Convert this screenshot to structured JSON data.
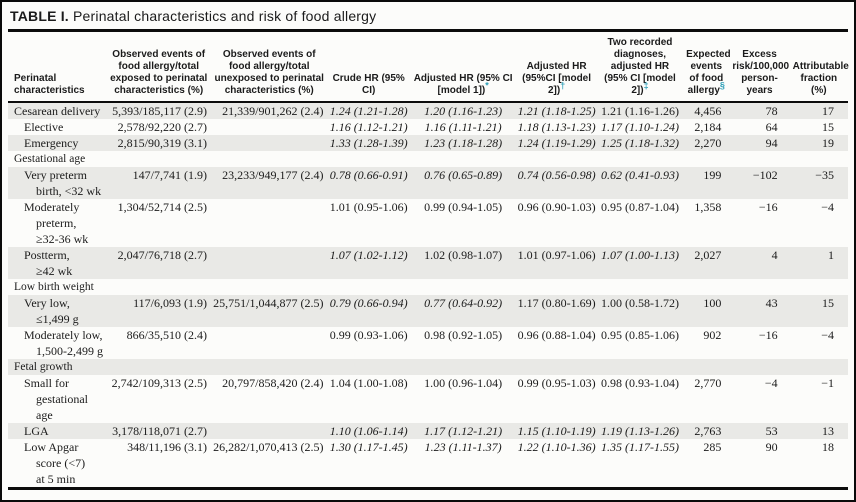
{
  "title": {
    "prefix": "TABLE I.",
    "text": " Perinatal characteristics and risk of food allergy"
  },
  "colors": {
    "footnote_marker_teal": "#2f9fb8",
    "row_shade": "#e9e9e6",
    "rule_black": "#0c0c0c",
    "text": "#1b1b1b",
    "paper": "#fcfcfa"
  },
  "table": {
    "columns": [
      {
        "key": "characteristic",
        "label": "Perinatal characteristics",
        "sup": ""
      },
      {
        "key": "observed_exposed",
        "label": "Observed events of food allergy/total exposed to perinatal characteristics (%)",
        "sup": ""
      },
      {
        "key": "observed_unexposed",
        "label": "Observed events of food allergy/total unexposed to perinatal characteristics (%)",
        "sup": ""
      },
      {
        "key": "crude_hr",
        "label": "Crude HR (95% CI)",
        "sup": ""
      },
      {
        "key": "adjusted_hr_model1",
        "label": "Adjusted HR (95% CI [model 1])",
        "sup": "*"
      },
      {
        "key": "adjusted_hr_model2",
        "label": "Adjusted HR (95%CI [model 2])",
        "sup": "†"
      },
      {
        "key": "two_recorded_hr",
        "label": "Two recorded diagnoses, adjusted HR (95% CI [model 2])",
        "sup": "‡"
      },
      {
        "key": "expected_events",
        "label": "Expected events of food allergy",
        "sup": "§"
      },
      {
        "key": "excess_risk",
        "label": "Excess risk/100,000 person-years",
        "sup": ""
      },
      {
        "key": "attributable_fraction",
        "label": "Attributable fraction (%)",
        "sup": ""
      }
    ],
    "rows": [
      {
        "label": "Cesarean delivery",
        "type": "data",
        "indent": 0,
        "shaded": true,
        "cells": {
          "observed_exposed": "5,393/185,117 (2.9)",
          "observed_unexposed": "21,339/901,262 (2.4)",
          "crude_hr": {
            "text": "1.24 (1.21-1.28)",
            "italic": true
          },
          "adjusted_hr_model1": {
            "text": "1.20 (1.16-1.23)",
            "italic": true
          },
          "adjusted_hr_model2": {
            "text": "1.21 (1.18-1.25)",
            "italic": true
          },
          "two_recorded_hr": {
            "text": "1.21 (1.16-1.26)",
            "italic": false
          },
          "expected_events": "4,456",
          "excess_risk": "78",
          "attributable_fraction": "17"
        }
      },
      {
        "label": "Elective",
        "type": "data",
        "indent": 1,
        "shaded": false,
        "cells": {
          "observed_exposed": "2,578/92,220 (2.7)",
          "observed_unexposed": "",
          "crude_hr": {
            "text": "1.16 (1.12-1.21)",
            "italic": true
          },
          "adjusted_hr_model1": {
            "text": "1.16 (1.11-1.21)",
            "italic": true
          },
          "adjusted_hr_model2": {
            "text": "1.18 (1.13-1.23)",
            "italic": true
          },
          "two_recorded_hr": {
            "text": "1.17 (1.10-1.24)",
            "italic": true
          },
          "expected_events": "2,184",
          "excess_risk": "64",
          "attributable_fraction": "15"
        }
      },
      {
        "label": "Emergency",
        "type": "data",
        "indent": 1,
        "shaded": true,
        "cells": {
          "observed_exposed": "2,815/90,319 (3.1)",
          "observed_unexposed": "",
          "crude_hr": {
            "text": "1.33 (1.28-1.39)",
            "italic": true
          },
          "adjusted_hr_model1": {
            "text": "1.23 (1.18-1.28)",
            "italic": true
          },
          "adjusted_hr_model2": {
            "text": "1.24 (1.19-1.29)",
            "italic": true
          },
          "two_recorded_hr": {
            "text": "1.25 (1.18-1.32)",
            "italic": true
          },
          "expected_events": "2,270",
          "excess_risk": "94",
          "attributable_fraction": "19"
        }
      },
      {
        "label": "Gestational age",
        "type": "section",
        "indent": 0,
        "shaded": false,
        "cells": {}
      },
      {
        "label": "Very preterm\nbirth, <32 wk",
        "type": "data",
        "indent": 1,
        "shaded": true,
        "cells": {
          "observed_exposed": "147/7,741 (1.9)",
          "observed_unexposed": "23,233/949,177 (2.4)",
          "crude_hr": {
            "text": "0.78 (0.66-0.91)",
            "italic": true
          },
          "adjusted_hr_model1": {
            "text": "0.76 (0.65-0.89)",
            "italic": true
          },
          "adjusted_hr_model2": {
            "text": "0.74 (0.56-0.98)",
            "italic": true
          },
          "two_recorded_hr": {
            "text": "0.62 (0.41-0.93)",
            "italic": true
          },
          "expected_events": "199",
          "excess_risk": "−102",
          "attributable_fraction": "−35"
        }
      },
      {
        "label": "Moderately\npreterm,\n≥32-36 wk",
        "type": "data",
        "indent": 1,
        "shaded": false,
        "cells": {
          "observed_exposed": "1,304/52,714 (2.5)",
          "observed_unexposed": "",
          "crude_hr": {
            "text": "1.01 (0.95-1.06)",
            "italic": false
          },
          "adjusted_hr_model1": {
            "text": "0.99 (0.94-1.05)",
            "italic": false
          },
          "adjusted_hr_model2": {
            "text": "0.96 (0.90-1.03)",
            "italic": false
          },
          "two_recorded_hr": {
            "text": "0.95 (0.87-1.04)",
            "italic": false
          },
          "expected_events": "1,358",
          "excess_risk": "−16",
          "attributable_fraction": "−4"
        }
      },
      {
        "label": "Postterm,\n≥42 wk",
        "type": "data",
        "indent": 1,
        "shaded": true,
        "cells": {
          "observed_exposed": "2,047/76,718 (2.7)",
          "observed_unexposed": "",
          "crude_hr": {
            "text": "1.07 (1.02-1.12)",
            "italic": true
          },
          "adjusted_hr_model1": {
            "text": "1.02 (0.98-1.07)",
            "italic": false
          },
          "adjusted_hr_model2": {
            "text": "1.01 (0.97-1.06)",
            "italic": false
          },
          "two_recorded_hr": {
            "text": "1.07 (1.00-1.13)",
            "italic": true
          },
          "expected_events": "2,027",
          "excess_risk": "4",
          "attributable_fraction": "1"
        }
      },
      {
        "label": "Low birth weight",
        "type": "section",
        "indent": 0,
        "shaded": false,
        "cells": {}
      },
      {
        "label": "Very low,\n≤1,499 g",
        "type": "data",
        "indent": 1,
        "shaded": true,
        "cells": {
          "observed_exposed": "117/6,093 (1.9)",
          "observed_unexposed": "25,751/1,044,877 (2.5)",
          "crude_hr": {
            "text": "0.79 (0.66-0.94)",
            "italic": true
          },
          "adjusted_hr_model1": {
            "text": "0.77 (0.64-0.92)",
            "italic": true
          },
          "adjusted_hr_model2": {
            "text": "1.17 (0.80-1.69)",
            "italic": false
          },
          "two_recorded_hr": {
            "text": "1.00 (0.58-1.72)",
            "italic": false
          },
          "expected_events": "100",
          "excess_risk": "43",
          "attributable_fraction": "15"
        }
      },
      {
        "label": "Moderately low,\n1,500-2,499 g",
        "type": "data",
        "indent": 1,
        "shaded": false,
        "cells": {
          "observed_exposed": "866/35,510 (2.4)",
          "observed_unexposed": "",
          "crude_hr": {
            "text": "0.99 (0.93-1.06)",
            "italic": false
          },
          "adjusted_hr_model1": {
            "text": "0.98 (0.92-1.05)",
            "italic": false
          },
          "adjusted_hr_model2": {
            "text": "0.96 (0.88-1.04)",
            "italic": false
          },
          "two_recorded_hr": {
            "text": "0.95 (0.85-1.06)",
            "italic": false
          },
          "expected_events": "902",
          "excess_risk": "−16",
          "attributable_fraction": "−4"
        }
      },
      {
        "label": "Fetal growth",
        "type": "section",
        "indent": 0,
        "shaded": true,
        "cells": {}
      },
      {
        "label": "Small for\ngestational\nage",
        "type": "data",
        "indent": 1,
        "shaded": false,
        "cells": {
          "observed_exposed": "2,742/109,313 (2.5)",
          "observed_unexposed": "20,797/858,420 (2.4)",
          "crude_hr": {
            "text": "1.04 (1.00-1.08)",
            "italic": false
          },
          "adjusted_hr_model1": {
            "text": "1.00 (0.96-1.04)",
            "italic": false
          },
          "adjusted_hr_model2": {
            "text": "0.99 (0.95-1.03)",
            "italic": false
          },
          "two_recorded_hr": {
            "text": "0.98 (0.93-1.04)",
            "italic": false
          },
          "expected_events": "2,770",
          "excess_risk": "−4",
          "attributable_fraction": "−1"
        }
      },
      {
        "label": "LGA",
        "type": "data",
        "indent": 1,
        "shaded": true,
        "cells": {
          "observed_exposed": "3,178/118,071 (2.7)",
          "observed_unexposed": "",
          "crude_hr": {
            "text": "1.10 (1.06-1.14)",
            "italic": true
          },
          "adjusted_hr_model1": {
            "text": "1.17 (1.12-1.21)",
            "italic": true
          },
          "adjusted_hr_model2": {
            "text": "1.15 (1.10-1.19)",
            "italic": true
          },
          "two_recorded_hr": {
            "text": "1.19 (1.13-1.26)",
            "italic": true
          },
          "expected_events": "2,763",
          "excess_risk": "53",
          "attributable_fraction": "13"
        }
      },
      {
        "label": "Low Apgar\nscore (<7)\nat 5 min",
        "type": "data",
        "indent": 1,
        "shaded": false,
        "cells": {
          "observed_exposed": "348/11,196 (3.1)",
          "observed_unexposed": "26,282/1,070,413 (2.5)",
          "crude_hr": {
            "text": "1.30 (1.17-1.45)",
            "italic": true
          },
          "adjusted_hr_model1": {
            "text": "1.23 (1.11-1.37)",
            "italic": true
          },
          "adjusted_hr_model2": {
            "text": "1.22 (1.10-1.36)",
            "italic": true
          },
          "two_recorded_hr": {
            "text": "1.35 (1.17-1.55)",
            "italic": true
          },
          "expected_events": "285",
          "excess_risk": "90",
          "attributable_fraction": "18"
        }
      }
    ]
  }
}
